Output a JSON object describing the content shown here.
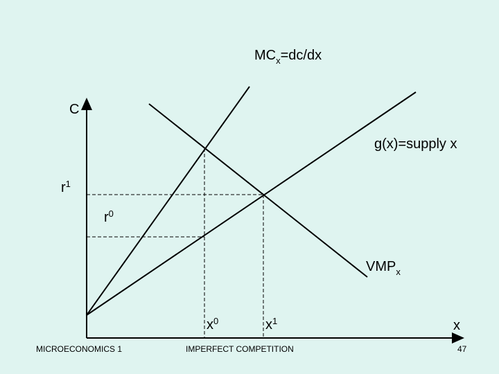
{
  "labels": {
    "mc": {
      "base": "MC",
      "sub": "x",
      "rest": "=dc/dx"
    },
    "c_axis": "C",
    "supply": "g(x)=supply x",
    "r1": {
      "base": "r",
      "sup": "1"
    },
    "r0": {
      "base": "r",
      "sup": "0"
    },
    "vmp": {
      "base": "VMP",
      "sub": "x"
    },
    "x0": {
      "base": "x",
      "sup": "0"
    },
    "x1": {
      "base": "x",
      "sup": "1"
    },
    "x_axis": "x"
  },
  "footer": {
    "left": "MICROECONOMICS 1",
    "center": "IMPERFECT COMPETITION",
    "page": "47"
  }
}
